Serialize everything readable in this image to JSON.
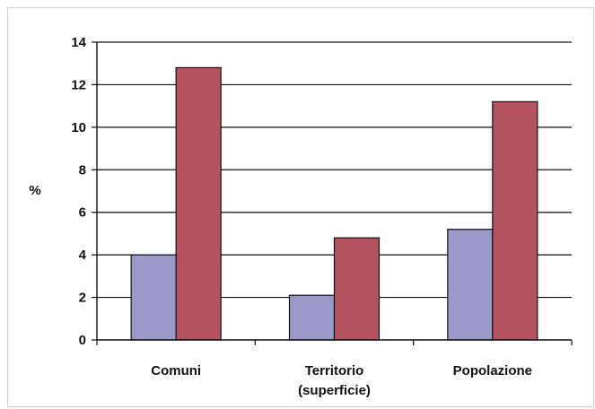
{
  "chart_data": {
    "type": "bar",
    "ylabel": "%",
    "ylim": [
      0,
      14
    ],
    "yticks": [
      0,
      2,
      4,
      6,
      8,
      10,
      12,
      14
    ],
    "grid": true,
    "categories": [
      [
        "Comuni"
      ],
      [
        "Territorio",
        "(superficie)"
      ],
      [
        "Popolazione"
      ]
    ],
    "series": [
      {
        "values": [
          4.0,
          2.1,
          5.2
        ],
        "color": "#9b99c9"
      },
      {
        "values": [
          12.8,
          4.8,
          11.2
        ],
        "color": "#b5525f"
      }
    ]
  }
}
